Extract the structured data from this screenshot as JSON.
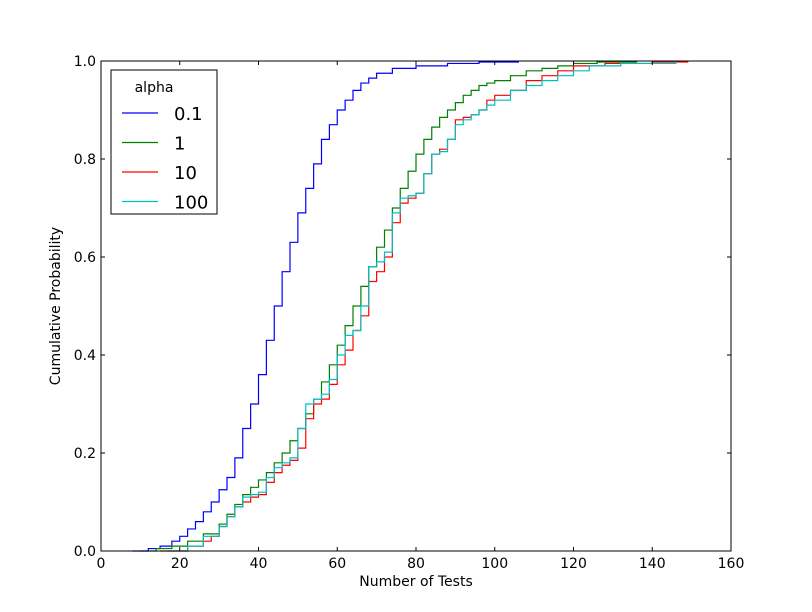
{
  "chart_data": {
    "type": "line",
    "step": true,
    "xlabel": "Number of Tests",
    "ylabel": "Cumulative Probability",
    "xlim": [
      0,
      160
    ],
    "ylim": [
      0,
      1.0
    ],
    "x_ticks": [
      "0",
      "20",
      "40",
      "60",
      "80",
      "100",
      "120",
      "140",
      "160"
    ],
    "y_ticks": [
      "0.0",
      "0.2",
      "0.4",
      "0.6",
      "0.8",
      "1.0"
    ],
    "grid": false,
    "legend": {
      "title": "alpha",
      "placement": "top-left"
    },
    "series": [
      {
        "name": "0.1",
        "color": "#0000ff",
        "points": [
          [
            8,
            0
          ],
          [
            12,
            0.005
          ],
          [
            15,
            0.01
          ],
          [
            18,
            0.02
          ],
          [
            20,
            0.03
          ],
          [
            22,
            0.045
          ],
          [
            24,
            0.06
          ],
          [
            26,
            0.08
          ],
          [
            28,
            0.1
          ],
          [
            30,
            0.125
          ],
          [
            32,
            0.15
          ],
          [
            34,
            0.19
          ],
          [
            36,
            0.25
          ],
          [
            38,
            0.3
          ],
          [
            40,
            0.36
          ],
          [
            42,
            0.43
          ],
          [
            44,
            0.5
          ],
          [
            46,
            0.57
          ],
          [
            48,
            0.63
          ],
          [
            50,
            0.69
          ],
          [
            52,
            0.74
          ],
          [
            54,
            0.79
          ],
          [
            56,
            0.84
          ],
          [
            58,
            0.87
          ],
          [
            60,
            0.9
          ],
          [
            62,
            0.92
          ],
          [
            64,
            0.94
          ],
          [
            66,
            0.955
          ],
          [
            68,
            0.965
          ],
          [
            70,
            0.975
          ],
          [
            74,
            0.985
          ],
          [
            80,
            0.99
          ],
          [
            88,
            0.995
          ],
          [
            96,
            0.998
          ],
          [
            106,
            1.0
          ]
        ]
      },
      {
        "name": "1",
        "color": "#008000",
        "points": [
          [
            10,
            0
          ],
          [
            14,
            0.005
          ],
          [
            18,
            0.01
          ],
          [
            22,
            0.02
          ],
          [
            26,
            0.035
          ],
          [
            30,
            0.055
          ],
          [
            32,
            0.075
          ],
          [
            34,
            0.095
          ],
          [
            36,
            0.115
          ],
          [
            38,
            0.13
          ],
          [
            40,
            0.145
          ],
          [
            42,
            0.16
          ],
          [
            44,
            0.18
          ],
          [
            46,
            0.2
          ],
          [
            48,
            0.225
          ],
          [
            50,
            0.25
          ],
          [
            52,
            0.28
          ],
          [
            54,
            0.31
          ],
          [
            56,
            0.345
          ],
          [
            58,
            0.38
          ],
          [
            60,
            0.42
          ],
          [
            62,
            0.46
          ],
          [
            64,
            0.5
          ],
          [
            66,
            0.54
          ],
          [
            68,
            0.58
          ],
          [
            70,
            0.62
          ],
          [
            72,
            0.655
          ],
          [
            74,
            0.7
          ],
          [
            76,
            0.74
          ],
          [
            78,
            0.775
          ],
          [
            80,
            0.81
          ],
          [
            82,
            0.84
          ],
          [
            84,
            0.865
          ],
          [
            86,
            0.885
          ],
          [
            88,
            0.9
          ],
          [
            90,
            0.915
          ],
          [
            92,
            0.93
          ],
          [
            94,
            0.94
          ],
          [
            96,
            0.95
          ],
          [
            98,
            0.955
          ],
          [
            100,
            0.96
          ],
          [
            104,
            0.97
          ],
          [
            108,
            0.98
          ],
          [
            112,
            0.985
          ],
          [
            116,
            0.99
          ],
          [
            120,
            0.995
          ],
          [
            126,
            0.998
          ],
          [
            136,
            1.0
          ]
        ]
      },
      {
        "name": "10",
        "color": "#ff0000",
        "points": [
          [
            15,
            0
          ],
          [
            22,
            0.01
          ],
          [
            26,
            0.02
          ],
          [
            28,
            0.03
          ],
          [
            30,
            0.05
          ],
          [
            32,
            0.07
          ],
          [
            34,
            0.09
          ],
          [
            36,
            0.1
          ],
          [
            38,
            0.11
          ],
          [
            40,
            0.115
          ],
          [
            42,
            0.14
          ],
          [
            44,
            0.16
          ],
          [
            46,
            0.175
          ],
          [
            48,
            0.185
          ],
          [
            50,
            0.21
          ],
          [
            52,
            0.27
          ],
          [
            54,
            0.3
          ],
          [
            56,
            0.31
          ],
          [
            58,
            0.34
          ],
          [
            60,
            0.38
          ],
          [
            62,
            0.41
          ],
          [
            64,
            0.45
          ],
          [
            66,
            0.48
          ],
          [
            68,
            0.55
          ],
          [
            70,
            0.57
          ],
          [
            72,
            0.6
          ],
          [
            74,
            0.67
          ],
          [
            76,
            0.71
          ],
          [
            78,
            0.72
          ],
          [
            80,
            0.73
          ],
          [
            82,
            0.77
          ],
          [
            84,
            0.81
          ],
          [
            86,
            0.82
          ],
          [
            88,
            0.84
          ],
          [
            90,
            0.88
          ],
          [
            92,
            0.885
          ],
          [
            94,
            0.89
          ],
          [
            96,
            0.9
          ],
          [
            98,
            0.92
          ],
          [
            100,
            0.93
          ],
          [
            104,
            0.94
          ],
          [
            108,
            0.96
          ],
          [
            112,
            0.97
          ],
          [
            116,
            0.98
          ],
          [
            120,
            0.99
          ],
          [
            128,
            0.995
          ],
          [
            140,
            0.998
          ],
          [
            149,
            1.0
          ]
        ]
      },
      {
        "name": "100",
        "color": "#00bfbf",
        "points": [
          [
            17,
            0
          ],
          [
            22,
            0.01
          ],
          [
            26,
            0.03
          ],
          [
            30,
            0.05
          ],
          [
            32,
            0.07
          ],
          [
            34,
            0.09
          ],
          [
            36,
            0.11
          ],
          [
            38,
            0.115
          ],
          [
            40,
            0.12
          ],
          [
            42,
            0.15
          ],
          [
            44,
            0.17
          ],
          [
            46,
            0.18
          ],
          [
            48,
            0.19
          ],
          [
            50,
            0.25
          ],
          [
            52,
            0.3
          ],
          [
            54,
            0.31
          ],
          [
            56,
            0.32
          ],
          [
            58,
            0.35
          ],
          [
            60,
            0.4
          ],
          [
            62,
            0.44
          ],
          [
            64,
            0.45
          ],
          [
            66,
            0.5
          ],
          [
            68,
            0.58
          ],
          [
            70,
            0.59
          ],
          [
            72,
            0.61
          ],
          [
            74,
            0.69
          ],
          [
            76,
            0.72
          ],
          [
            78,
            0.725
          ],
          [
            80,
            0.73
          ],
          [
            82,
            0.77
          ],
          [
            84,
            0.81
          ],
          [
            86,
            0.815
          ],
          [
            88,
            0.84
          ],
          [
            90,
            0.87
          ],
          [
            92,
            0.88
          ],
          [
            94,
            0.89
          ],
          [
            96,
            0.9
          ],
          [
            98,
            0.91
          ],
          [
            100,
            0.92
          ],
          [
            104,
            0.94
          ],
          [
            108,
            0.95
          ],
          [
            112,
            0.96
          ],
          [
            116,
            0.97
          ],
          [
            120,
            0.98
          ],
          [
            124,
            0.99
          ],
          [
            132,
            0.995
          ],
          [
            146,
            1.0
          ]
        ]
      }
    ]
  }
}
